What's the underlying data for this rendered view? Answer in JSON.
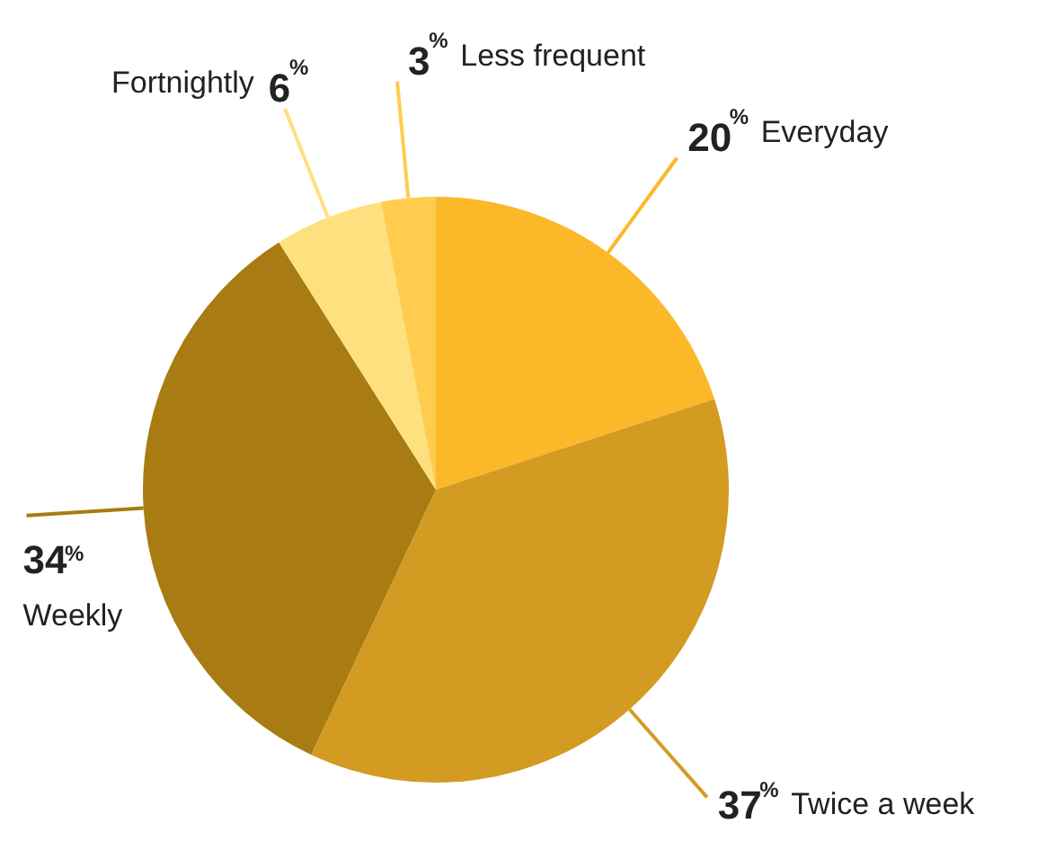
{
  "chart_data": {
    "type": "pie",
    "categories": [
      "Everyday",
      "Twice a week",
      "Weekly",
      "Fortnightly",
      "Less frequent"
    ],
    "values": [
      20,
      37,
      34,
      6,
      3
    ],
    "colors": [
      "#fbb829",
      "#d39b21",
      "#a87c12",
      "#ffe07f",
      "#ffcc4d"
    ],
    "value_labels": [
      "20$^{%}$",
      "37$^{%}$",
      "34$^{%}$",
      "6$^{%}$",
      "3$^{%}$"
    ]
  }
}
